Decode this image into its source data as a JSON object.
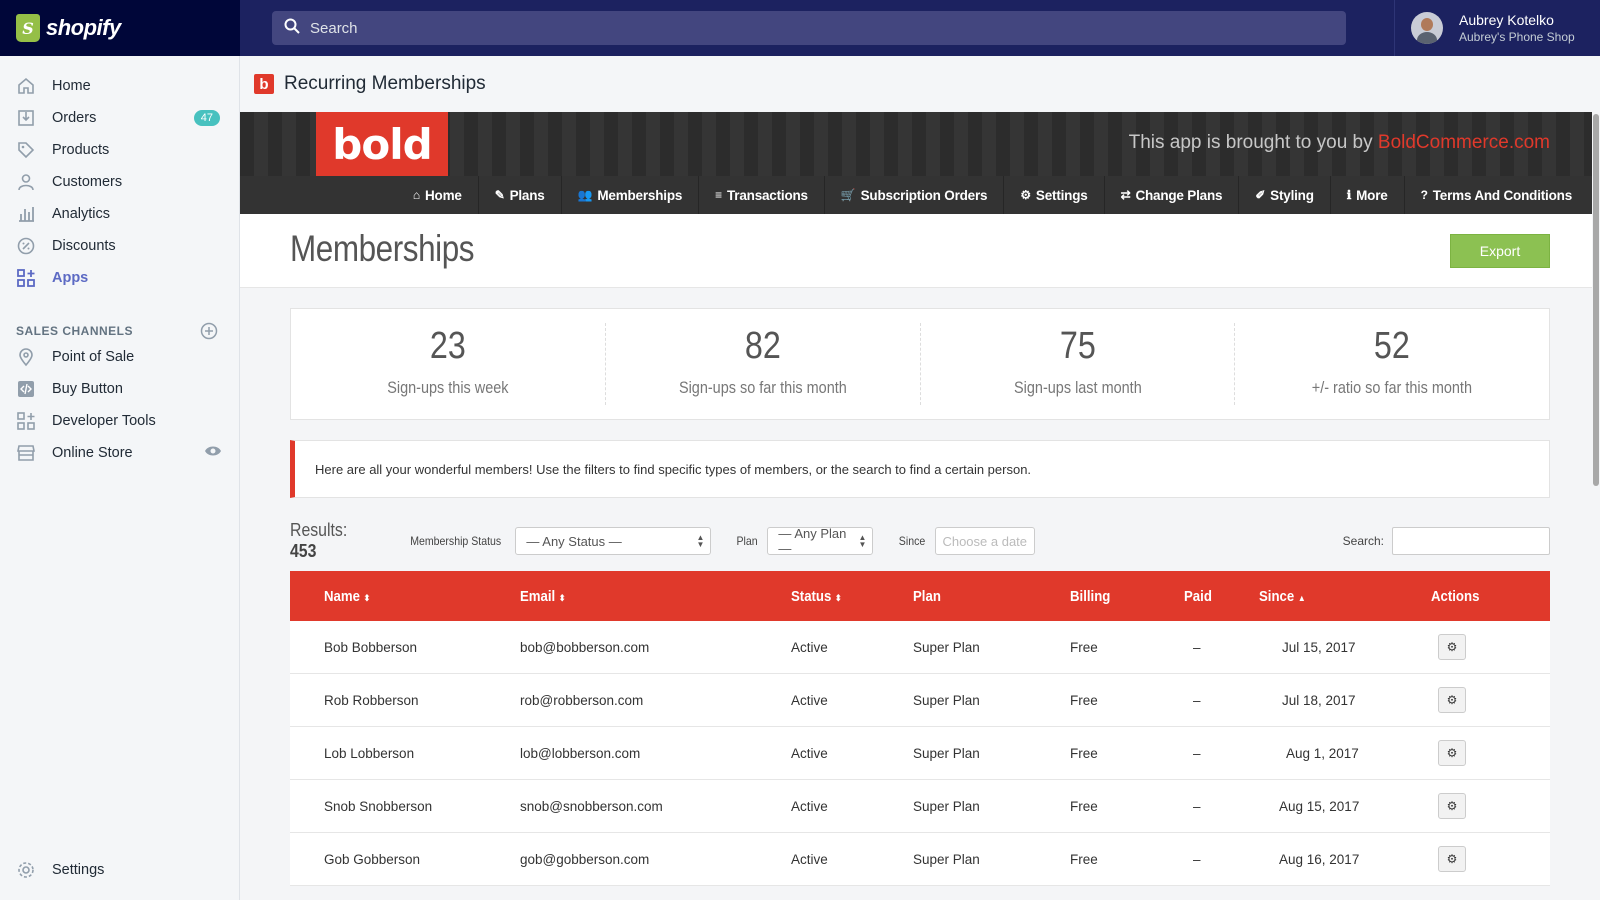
{
  "brand": {
    "name": "shopify"
  },
  "search": {
    "placeholder": "Search"
  },
  "user": {
    "name": "Aubrey Kotelko",
    "shop": "Aubrey's Phone Shop"
  },
  "sidebar": {
    "items": [
      {
        "label": "Home",
        "icon": "home-icon"
      },
      {
        "label": "Orders",
        "icon": "orders-icon",
        "badge": "47"
      },
      {
        "label": "Products",
        "icon": "tag-icon"
      },
      {
        "label": "Customers",
        "icon": "person-icon"
      },
      {
        "label": "Analytics",
        "icon": "bar-chart-icon"
      },
      {
        "label": "Discounts",
        "icon": "discount-icon"
      },
      {
        "label": "Apps",
        "icon": "apps-icon"
      }
    ],
    "channels_label": "SALES CHANNELS",
    "channels": [
      {
        "label": "Point of Sale",
        "icon": "location-icon"
      },
      {
        "label": "Buy Button",
        "icon": "code-icon"
      },
      {
        "label": "Developer Tools",
        "icon": "apps-plus-icon"
      },
      {
        "label": "Online Store",
        "icon": "store-icon"
      }
    ],
    "settings_label": "Settings"
  },
  "app": {
    "logo_letter": "b",
    "title": "Recurring Memberships",
    "banner_logo": "bold",
    "banner_text": "This app is brought to you by ",
    "banner_link": "BoldCommerce.com",
    "nav": [
      {
        "icon": "⌂",
        "label": "Home"
      },
      {
        "icon": "✎",
        "label": "Plans"
      },
      {
        "icon": "👥",
        "label": "Memberships"
      },
      {
        "icon": "≡",
        "label": "Transactions"
      },
      {
        "icon": "🛒",
        "label": "Subscription Orders"
      },
      {
        "icon": "⚙",
        "label": "Settings"
      },
      {
        "icon": "⇄",
        "label": "Change Plans"
      },
      {
        "icon": "✐",
        "label": "Styling"
      },
      {
        "icon": "ℹ",
        "label": "More"
      },
      {
        "icon": "?",
        "label": "Terms And Conditions"
      }
    ]
  },
  "page": {
    "heading": "Memberships",
    "export_label": "Export",
    "stats": [
      {
        "value": "23",
        "label": "Sign-ups this week"
      },
      {
        "value": "82",
        "label": "Sign-ups so far this month"
      },
      {
        "value": "75",
        "label": "Sign-ups last month"
      },
      {
        "value": "52",
        "label": "+/- ratio so far this month"
      }
    ],
    "info": "Here are all your wonderful members! Use the filters to find specific types of members, or the search to find a certain person.",
    "results_label": "Results:",
    "results_count": "453",
    "filters": {
      "status_label": "Membership Status",
      "status_value": "— Any Status —",
      "plan_label": "Plan",
      "plan_value": "— Any Plan —",
      "since_label": "Since",
      "since_placeholder": "Choose a date",
      "search_label": "Search:"
    },
    "columns": [
      "Name",
      "Email",
      "Status",
      "Plan",
      "Billing",
      "Paid",
      "Since",
      "Actions"
    ],
    "rows": [
      {
        "name": "Bob Bobberson",
        "email": "bob@bobberson.com",
        "status": "Active",
        "plan": "Super Plan",
        "billing": "Free",
        "paid": "–",
        "since": "Jul 15, 2017"
      },
      {
        "name": "Rob Robberson",
        "email": "rob@robberson.com",
        "status": "Active",
        "plan": "Super Plan",
        "billing": "Free",
        "paid": "–",
        "since": "Jul 18, 2017"
      },
      {
        "name": "Lob Lobberson",
        "email": "lob@lobberson.com",
        "status": "Active",
        "plan": "Super Plan",
        "billing": "Free",
        "paid": "–",
        "since": "Aug 1, 2017"
      },
      {
        "name": "Snob Snobberson",
        "email": "snob@snobberson.com",
        "status": "Active",
        "plan": "Super Plan",
        "billing": "Free",
        "paid": "–",
        "since": "Aug 15, 2017"
      },
      {
        "name": "Gob Gobberson",
        "email": "gob@gobberson.com",
        "status": "Active",
        "plan": "Super Plan",
        "billing": "Free",
        "paid": "–",
        "since": "Aug 16, 2017"
      }
    ]
  },
  "colors": {
    "accent": "#e0392b",
    "shopify_nav": "#1c2260",
    "export": "#8cc152",
    "active_nav": "#5c6ac4"
  }
}
